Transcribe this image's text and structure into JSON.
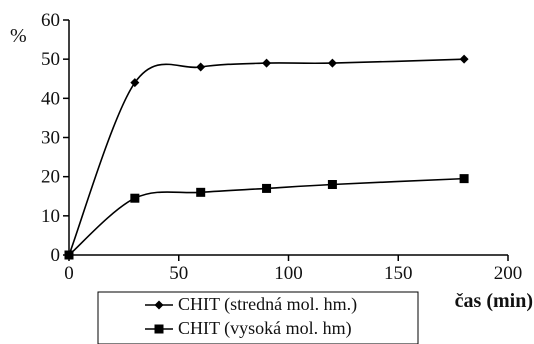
{
  "chart_data": {
    "type": "line",
    "title": "",
    "xlabel": "čas (min)",
    "ylabel": "%",
    "xlim": [
      0,
      200
    ],
    "ylim": [
      0,
      60
    ],
    "xticks": [
      0,
      50,
      100,
      150,
      200
    ],
    "yticks": [
      0,
      10,
      20,
      30,
      40,
      50,
      60
    ],
    "grid": false,
    "legend_position": "bottom-center",
    "series": [
      {
        "name": "CHIT (stredná mol. hm.)",
        "marker": "diamond",
        "smooth": true,
        "color": "#000000",
        "x": [
          0,
          30,
          60,
          90,
          120,
          180
        ],
        "y": [
          0,
          44,
          48,
          49,
          49,
          50
        ]
      },
      {
        "name": "CHIT (vysoká mol. hm)",
        "marker": "square",
        "smooth": true,
        "color": "#000000",
        "x": [
          0,
          30,
          60,
          90,
          120,
          180
        ],
        "y": [
          0,
          14.5,
          16,
          17,
          18,
          19.5
        ]
      }
    ]
  }
}
